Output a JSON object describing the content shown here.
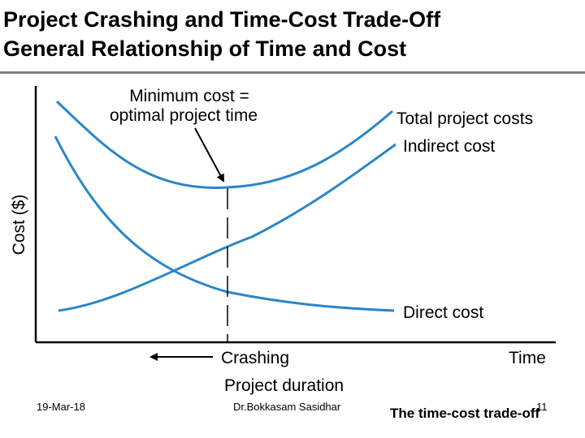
{
  "slide": {
    "title_line1": "Project Crashing and Time-Cost Trade-Off",
    "title_line2": "General Relationship of Time and Cost"
  },
  "diagram": {
    "y_axis_label": "Cost ($)",
    "x_axis_label_right": "Time",
    "crashing_label": "Crashing",
    "x_axis_title": "Project duration",
    "annotation_line1": "Minimum cost =",
    "annotation_line2": "optimal project time",
    "curves": {
      "total": "Total project costs",
      "indirect": "Indirect cost",
      "direct": "Direct cost"
    },
    "colors": {
      "curve": "#2a86c8",
      "axis": "#000000"
    }
  },
  "footer": {
    "date": "19-Mar-18",
    "author": "Dr.Bokkasam Sasidhar",
    "topic": "The time-cost trade-off",
    "page": "11"
  }
}
